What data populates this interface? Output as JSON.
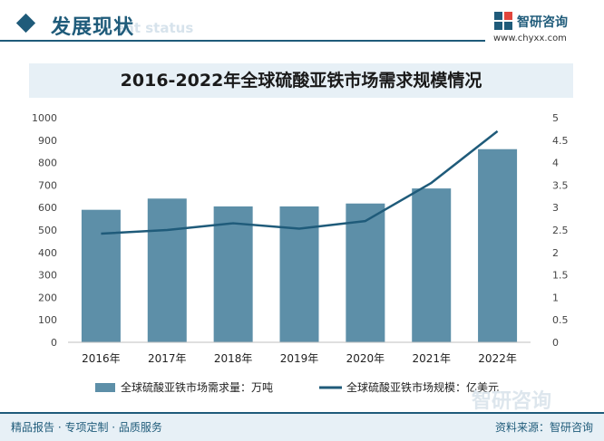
{
  "header": {
    "section_title": "发展现状",
    "section_subtitle": "ent status",
    "brand_name": "智研咨询",
    "brand_url": "www.chyxx.com"
  },
  "footer": {
    "left_text": "精品报告 · 专项定制 · 品质服务",
    "source_text": "资料来源：智研咨询",
    "watermark_text": "智研咨询"
  },
  "colors": {
    "bar": "#5d8fa8",
    "line": "#1f5b7a",
    "accent": "#1f5b7a",
    "title_band": "#e7f0f6"
  },
  "chart_data": {
    "type": "bar",
    "title": "2016-2022年全球硫酸亚铁市场需求规模情况",
    "categories": [
      "2016年",
      "2017年",
      "2018年",
      "2019年",
      "2020年",
      "2021年",
      "2022年"
    ],
    "series": [
      {
        "name": "全球硫酸亚铁市场需求量：万吨",
        "type": "bar",
        "axis": "left",
        "values": [
          590,
          640,
          605,
          605,
          618,
          685,
          860
        ]
      },
      {
        "name": "全球硫酸亚铁市场规模：亿美元",
        "type": "line",
        "axis": "right",
        "values": [
          2.42,
          2.5,
          2.65,
          2.53,
          2.7,
          3.55,
          4.7
        ]
      }
    ],
    "y_left": {
      "min": 0,
      "max": 1000,
      "step": 100
    },
    "y_right": {
      "min": 0,
      "max": 5,
      "step": 0.5
    },
    "grid": false,
    "legend_position": "bottom"
  }
}
